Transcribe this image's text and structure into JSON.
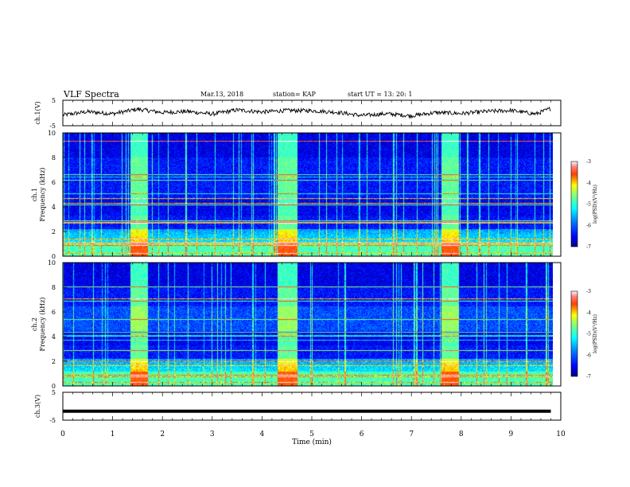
{
  "header": {
    "title": "VLF Spectra",
    "date": "Mar.13, 2018",
    "station": "station= KAP",
    "start_ut": "start  UT  =   13: 20: 1"
  },
  "chart_data": [
    {
      "type": "line",
      "panel": "ch1-waveform",
      "ylabel": "ch.1(V)",
      "ylim": [
        -5,
        5
      ],
      "yticks": [
        "5",
        "-5"
      ],
      "x": [
        0.0,
        0.5,
        1.0,
        1.5,
        2.0,
        2.5,
        3.0,
        3.5,
        4.0,
        4.5,
        5.0,
        5.5,
        6.0,
        6.5,
        7.0,
        7.5,
        8.0,
        8.5,
        9.0,
        9.5,
        9.8
      ],
      "values": [
        -0.8,
        0.5,
        -0.3,
        1.5,
        0.2,
        0.6,
        -0.4,
        1.2,
        0.4,
        1.0,
        0.9,
        0.3,
        -1.0,
        -0.3,
        -1.1,
        0.2,
        -0.2,
        0.6,
        1.0,
        -0.4,
        1.8
      ],
      "note_trace": "noisy waveform trace"
    },
    {
      "type": "heatmap",
      "panel": "ch1-spectrogram",
      "ylabel": "ch.1\nFrequency (kHz)",
      "ylim": [
        0,
        10
      ],
      "yticks": [
        "0",
        "2",
        "4",
        "6",
        "8",
        "10"
      ],
      "xlim": [
        0,
        9.8
      ],
      "bright_intervals_min": [
        [
          1.35,
          1.7
        ],
        [
          4.3,
          4.7
        ],
        [
          7.6,
          7.95
        ]
      ],
      "colorbar": {
        "label": "log(PSD)(V²/Hz)",
        "range": [
          -7,
          -3
        ],
        "ticks": [
          "-3",
          "-4",
          "-5",
          "-6",
          "-7"
        ]
      }
    },
    {
      "type": "heatmap",
      "panel": "ch2-spectrogram",
      "ylabel": "ch.2\nFrequency (kHz)",
      "ylim": [
        0,
        10
      ],
      "yticks": [
        "0",
        "2",
        "4",
        "6",
        "8",
        "10"
      ],
      "xlim": [
        0,
        9.8
      ],
      "bright_intervals_min": [
        [
          1.35,
          1.7
        ],
        [
          4.3,
          4.7
        ],
        [
          7.6,
          7.95
        ]
      ],
      "colorbar": {
        "label": "log(PSD)(V²/Hz)",
        "range": [
          -7,
          -3
        ],
        "ticks": [
          "-3",
          "-4",
          "-5",
          "-6",
          "-7"
        ]
      }
    },
    {
      "type": "line",
      "panel": "ch3-waveform",
      "ylabel": "ch.3(V)",
      "ylim": [
        -5,
        5
      ],
      "yticks": [
        "5",
        "-5"
      ],
      "x": [
        0.0,
        9.8
      ],
      "values": [
        -1.8,
        -1.8
      ]
    }
  ],
  "xaxis": {
    "label": "Time  (min)",
    "range": [
      0,
      10
    ],
    "ticks": [
      "0",
      "1",
      "2",
      "3",
      "4",
      "5",
      "6",
      "7",
      "8",
      "9",
      "10"
    ]
  },
  "colors": {
    "colormap": [
      "#00007f",
      "#0000ff",
      "#007fff",
      "#00ffff",
      "#7fff7f",
      "#ffff00",
      "#ff7f00",
      "#ff0000",
      "#ffffff"
    ]
  }
}
